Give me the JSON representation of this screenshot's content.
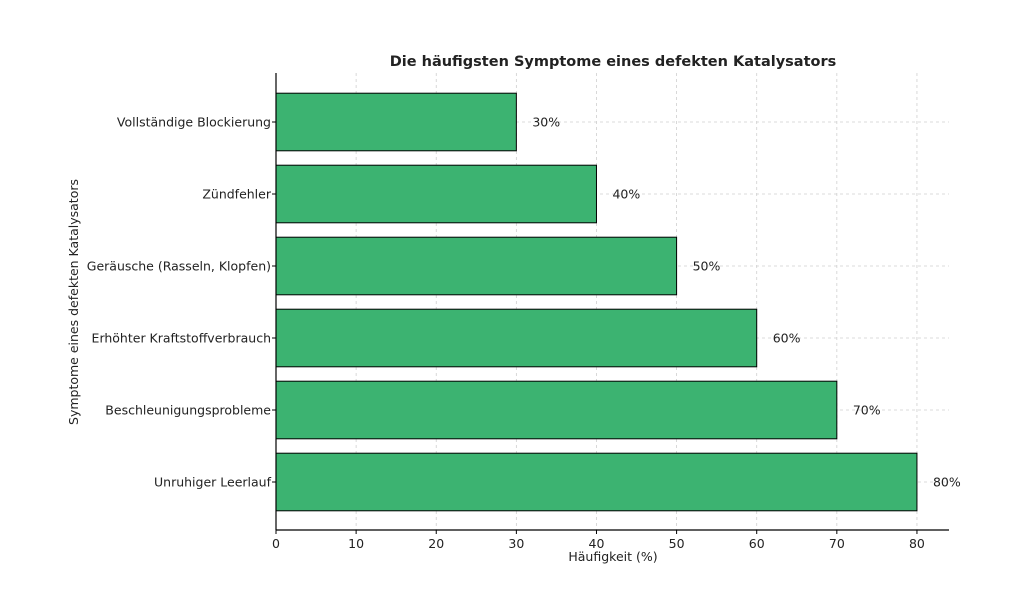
{
  "chart_data": {
    "type": "bar",
    "orientation": "horizontal",
    "title": "Die häufigsten Symptome eines defekten Katalysators",
    "xlabel": "Häufigkeit (%)",
    "ylabel": "Symptome eines defekten Katalysators",
    "categories": [
      "Unruhiger Leerlauf",
      "Beschleunigungsprobleme",
      "Erhöhter Kraftstoffverbrauch",
      "Geräusche (Rasseln, Klopfen)",
      "Zündfehler",
      "Vollständige Blockierung"
    ],
    "values": [
      80,
      70,
      60,
      50,
      40,
      30
    ],
    "value_labels": [
      "80%",
      "70%",
      "60%",
      "50%",
      "40%",
      "30%"
    ],
    "xlim": [
      0,
      84
    ],
    "xticks": [
      0,
      10,
      20,
      30,
      40,
      50,
      60,
      70,
      80
    ],
    "grid": true,
    "bar_color": "#3cb371",
    "bar_edge_color": "#000000"
  }
}
